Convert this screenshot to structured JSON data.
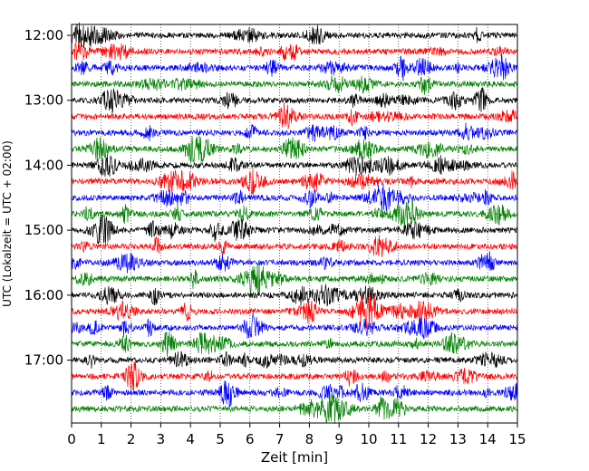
{
  "chart_data": {
    "type": "line",
    "title": "",
    "xlabel": "Zeit  [min]",
    "ylabel": "UTC (Lokalzeit = UTC + 02:00)",
    "xlim": [
      0,
      15
    ],
    "x_ticks": [
      0,
      1,
      2,
      3,
      4,
      5,
      6,
      7,
      8,
      9,
      10,
      11,
      12,
      13,
      14,
      15
    ],
    "x_tick_labels": [
      "0",
      "1",
      "2",
      "3",
      "4",
      "5",
      "6",
      "7",
      "8",
      "9",
      "10",
      "11",
      "12",
      "13",
      "14",
      "15"
    ],
    "y_ticks": [
      {
        "label": "12:00",
        "minutes": 0
      },
      {
        "label": "13:00",
        "minutes": 60
      },
      {
        "label": "14:00",
        "minutes": 120
      },
      {
        "label": "15:00",
        "minutes": 180
      },
      {
        "label": "16:00",
        "minutes": 240
      },
      {
        "label": "17:00",
        "minutes": 300
      }
    ],
    "trace_interval_min": 15,
    "trace_start_minutes": [
      0,
      15,
      30,
      45,
      60,
      75,
      90,
      105,
      120,
      135,
      150,
      165,
      180,
      195,
      210,
      225,
      240,
      255,
      270,
      285,
      300,
      315,
      330,
      345
    ],
    "trace_colors": [
      "#000000",
      "#ff0000",
      "#0000ff",
      "#008000"
    ],
    "grid": "vertical dotted at each minute"
  }
}
